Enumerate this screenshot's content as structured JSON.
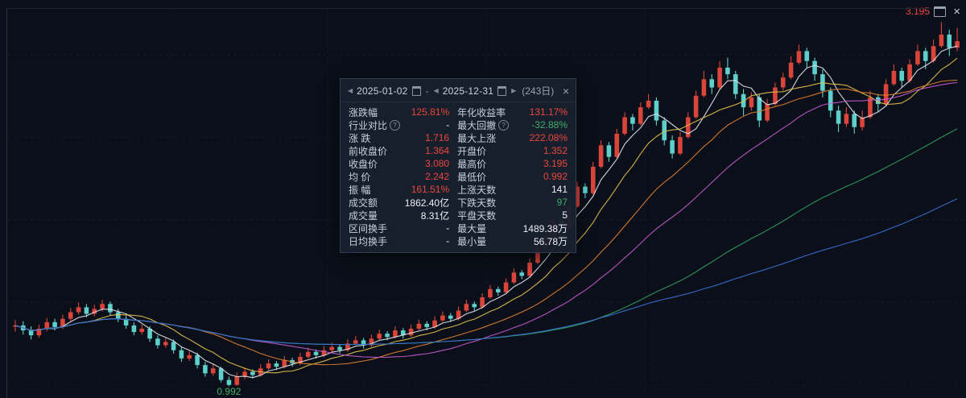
{
  "window": {
    "controls": {
      "expand_icon": "window",
      "close_icon": "×"
    }
  },
  "panel": {
    "header": {
      "prev_start": "◀",
      "start_date": "2025-01-02",
      "sep": "-",
      "prev_end": "◀",
      "end_date": "2025-12-31",
      "next_end": "▶",
      "range_days": "(243日)",
      "close": "×"
    },
    "rows": [
      {
        "left": {
          "label": "涨跌幅",
          "value": "125.81%",
          "tone": "up"
        },
        "right": {
          "label": "年化收益率",
          "value": "131.17%",
          "tone": "up"
        }
      },
      {
        "left": {
          "label": "行业对比",
          "value": "-",
          "tone": "neutral",
          "help": true
        },
        "right": {
          "label": "最大回撤",
          "value": "-32.88%",
          "tone": "down",
          "help": true
        }
      },
      {
        "left": {
          "label": "涨 跌",
          "value": "1.716",
          "tone": "up"
        },
        "right": {
          "label": "最大上涨",
          "value": "222.08%",
          "tone": "up"
        }
      },
      {
        "left": {
          "label": "前收盘价",
          "value": "1.364",
          "tone": "up"
        },
        "right": {
          "label": "开盘价",
          "value": "1.352",
          "tone": "up"
        }
      },
      {
        "left": {
          "label": "收盘价",
          "value": "3.080",
          "tone": "up"
        },
        "right": {
          "label": "最高价",
          "value": "3.195",
          "tone": "up"
        }
      },
      {
        "left": {
          "label": "均 价",
          "value": "2.242",
          "tone": "up"
        },
        "right": {
          "label": "最低价",
          "value": "0.992",
          "tone": "up"
        }
      },
      {
        "left": {
          "label": "振 幅",
          "value": "161.51%",
          "tone": "up"
        },
        "right": {
          "label": "上涨天数",
          "value": "141",
          "tone": "neutral"
        }
      },
      {
        "left": {
          "label": "成交额",
          "value": "1862.40亿",
          "tone": "neutral"
        },
        "right": {
          "label": "下跌天数",
          "value": "97",
          "tone": "down"
        }
      },
      {
        "left": {
          "label": "成交量",
          "value": "8.31亿",
          "tone": "neutral"
        },
        "right": {
          "label": "平盘天数",
          "value": "5",
          "tone": "neutral"
        }
      },
      {
        "left": {
          "label": "区间换手",
          "value": "-",
          "tone": "neutral"
        },
        "right": {
          "label": "最大量",
          "value": "1489.38万",
          "tone": "neutral"
        }
      },
      {
        "left": {
          "label": "日均换手",
          "value": "-",
          "tone": "neutral"
        },
        "right": {
          "label": "最小量",
          "value": "56.78万",
          "tone": "neutral"
        }
      }
    ]
  },
  "chart_data": {
    "type": "candlestick",
    "date_range": [
      "2025-01-02",
      "2025-12-31"
    ],
    "period_days": 243,
    "ylim": [
      0.95,
      3.3
    ],
    "grid": "faint-dashed",
    "stats": {
      "change_pct": "125.81%",
      "annualized_return": "131.17%",
      "max_drawdown": "-32.88%",
      "change": 1.716,
      "max_rise": "222.08%",
      "prev_close": 1.364,
      "open": 1.352,
      "close": 3.08,
      "high": 3.195,
      "avg_price": 2.242,
      "low": 0.992,
      "amplitude": "161.51%",
      "up_days": 141,
      "down_days": 97,
      "flat_days": 5,
      "turnover": "1862.40亿",
      "volume": "8.31亿",
      "max_volume": "1489.38万",
      "min_volume": "56.78万"
    },
    "annotations": {
      "max_label": "3.195",
      "min_label": "0.992"
    },
    "colors": {
      "up": "#d9453a",
      "down": "#5ecfcb",
      "grid": "#ffffff",
      "max_label": "#f1463c",
      "min_label": "#3fae6a"
    },
    "ma_lines": [
      {
        "window": 5,
        "color": "#e3e6ec"
      },
      {
        "window": 10,
        "color": "#e5c14c"
      },
      {
        "window": 20,
        "color": "#e0802f"
      },
      {
        "window": 30,
        "color": "#c45ad0"
      },
      {
        "window": 60,
        "color": "#2f9e5f"
      },
      {
        "window": 90,
        "color": "#3a6fd8"
      }
    ],
    "candles": [
      [
        1.352,
        1.392,
        1.322,
        1.36
      ],
      [
        1.36,
        1.385,
        1.305,
        1.33
      ],
      [
        1.33,
        1.355,
        1.275,
        1.3
      ],
      [
        1.3,
        1.365,
        1.285,
        1.34
      ],
      [
        1.34,
        1.405,
        1.325,
        1.38
      ],
      [
        1.38,
        1.4,
        1.33,
        1.35
      ],
      [
        1.35,
        1.425,
        1.34,
        1.4
      ],
      [
        1.4,
        1.465,
        1.385,
        1.44
      ],
      [
        1.44,
        1.5,
        1.425,
        1.47
      ],
      [
        1.47,
        1.49,
        1.41,
        1.43
      ],
      [
        1.43,
        1.485,
        1.415,
        1.46
      ],
      [
        1.46,
        1.515,
        1.445,
        1.49
      ],
      [
        1.49,
        1.505,
        1.42,
        1.44
      ],
      [
        1.44,
        1.46,
        1.38,
        1.4
      ],
      [
        1.4,
        1.42,
        1.34,
        1.36
      ],
      [
        1.36,
        1.38,
        1.3,
        1.32
      ],
      [
        1.32,
        1.365,
        1.305,
        1.34
      ],
      [
        1.34,
        1.355,
        1.26,
        1.28
      ],
      [
        1.28,
        1.3,
        1.22,
        1.24
      ],
      [
        1.24,
        1.285,
        1.225,
        1.26
      ],
      [
        1.26,
        1.275,
        1.19,
        1.21
      ],
      [
        1.21,
        1.23,
        1.14,
        1.16
      ],
      [
        1.16,
        1.205,
        1.145,
        1.18
      ],
      [
        1.18,
        1.195,
        1.1,
        1.12
      ],
      [
        1.12,
        1.14,
        1.05,
        1.07
      ],
      [
        1.07,
        1.125,
        1.055,
        1.1
      ],
      [
        1.1,
        1.11,
        1.015,
        1.03
      ],
      [
        1.03,
        1.05,
        0.992,
        1.0
      ],
      [
        1.0,
        1.075,
        0.995,
        1.05
      ],
      [
        1.05,
        1.105,
        1.035,
        1.08
      ],
      [
        1.08,
        1.095,
        1.04,
        1.06
      ],
      [
        1.06,
        1.125,
        1.05,
        1.1
      ],
      [
        1.1,
        1.155,
        1.09,
        1.13
      ],
      [
        1.13,
        1.145,
        1.09,
        1.11
      ],
      [
        1.11,
        1.175,
        1.1,
        1.15
      ],
      [
        1.15,
        1.165,
        1.11,
        1.13
      ],
      [
        1.13,
        1.195,
        1.12,
        1.17
      ],
      [
        1.17,
        1.225,
        1.16,
        1.2
      ],
      [
        1.2,
        1.215,
        1.16,
        1.18
      ],
      [
        1.18,
        1.235,
        1.17,
        1.21
      ],
      [
        1.21,
        1.255,
        1.2,
        1.23
      ],
      [
        1.23,
        1.245,
        1.19,
        1.21
      ],
      [
        1.21,
        1.275,
        1.2,
        1.25
      ],
      [
        1.25,
        1.295,
        1.24,
        1.27
      ],
      [
        1.27,
        1.285,
        1.22,
        1.24
      ],
      [
        1.24,
        1.305,
        1.23,
        1.28
      ],
      [
        1.28,
        1.335,
        1.27,
        1.31
      ],
      [
        1.31,
        1.325,
        1.27,
        1.29
      ],
      [
        1.29,
        1.355,
        1.28,
        1.33
      ],
      [
        1.33,
        1.345,
        1.28,
        1.3
      ],
      [
        1.3,
        1.365,
        1.29,
        1.34
      ],
      [
        1.34,
        1.395,
        1.33,
        1.37
      ],
      [
        1.37,
        1.385,
        1.33,
        1.35
      ],
      [
        1.35,
        1.415,
        1.34,
        1.39
      ],
      [
        1.39,
        1.445,
        1.38,
        1.42
      ],
      [
        1.42,
        1.435,
        1.38,
        1.4
      ],
      [
        1.4,
        1.475,
        1.39,
        1.45
      ],
      [
        1.45,
        1.515,
        1.44,
        1.49
      ],
      [
        1.49,
        1.505,
        1.45,
        1.47
      ],
      [
        1.47,
        1.555,
        1.46,
        1.53
      ],
      [
        1.53,
        1.605,
        1.52,
        1.58
      ],
      [
        1.58,
        1.595,
        1.54,
        1.56
      ],
      [
        1.56,
        1.645,
        1.55,
        1.62
      ],
      [
        1.62,
        1.705,
        1.61,
        1.68
      ],
      [
        1.68,
        1.695,
        1.64,
        1.66
      ],
      [
        1.66,
        1.765,
        1.65,
        1.74
      ],
      [
        1.74,
        1.845,
        1.73,
        1.82
      ],
      [
        1.82,
        1.925,
        1.81,
        1.9
      ],
      [
        1.9,
        2.03,
        1.89,
        2.0
      ],
      [
        2.0,
        2.02,
        1.93,
        1.95
      ],
      [
        1.95,
        2.11,
        1.94,
        2.08
      ],
      [
        2.08,
        2.23,
        2.07,
        2.2
      ],
      [
        2.2,
        2.22,
        2.13,
        2.16
      ],
      [
        2.16,
        2.35,
        2.15,
        2.32
      ],
      [
        2.32,
        2.48,
        2.31,
        2.45
      ],
      [
        2.45,
        2.47,
        2.35,
        2.38
      ],
      [
        2.38,
        2.55,
        2.37,
        2.52
      ],
      [
        2.52,
        2.65,
        2.51,
        2.62
      ],
      [
        2.62,
        2.64,
        2.54,
        2.58
      ],
      [
        2.58,
        2.71,
        2.57,
        2.68
      ],
      [
        2.68,
        2.76,
        2.67,
        2.72
      ],
      [
        2.72,
        2.74,
        2.57,
        2.6
      ],
      [
        2.6,
        2.62,
        2.45,
        2.48
      ],
      [
        2.48,
        2.51,
        2.37,
        2.4
      ],
      [
        2.4,
        2.53,
        2.39,
        2.5
      ],
      [
        2.5,
        2.65,
        2.49,
        2.62
      ],
      [
        2.62,
        2.78,
        2.61,
        2.75
      ],
      [
        2.75,
        2.9,
        2.74,
        2.85
      ],
      [
        2.85,
        2.88,
        2.76,
        2.8
      ],
      [
        2.8,
        2.96,
        2.79,
        2.92
      ],
      [
        2.92,
        2.98,
        2.85,
        2.88
      ],
      [
        2.88,
        2.9,
        2.73,
        2.76
      ],
      [
        2.76,
        2.79,
        2.63,
        2.68
      ],
      [
        2.68,
        2.77,
        2.66,
        2.74
      ],
      [
        2.74,
        2.76,
        2.56,
        2.6
      ],
      [
        2.6,
        2.73,
        2.59,
        2.7
      ],
      [
        2.7,
        2.83,
        2.69,
        2.8
      ],
      [
        2.8,
        2.89,
        2.78,
        2.86
      ],
      [
        2.86,
        2.99,
        2.85,
        2.95
      ],
      [
        2.95,
        3.06,
        2.94,
        3.02
      ],
      [
        3.02,
        3.04,
        2.92,
        2.96
      ],
      [
        2.96,
        2.98,
        2.84,
        2.88
      ],
      [
        2.88,
        2.91,
        2.74,
        2.78
      ],
      [
        2.78,
        2.8,
        2.62,
        2.66
      ],
      [
        2.66,
        2.69,
        2.53,
        2.58
      ],
      [
        2.58,
        2.68,
        2.56,
        2.64
      ],
      [
        2.64,
        2.66,
        2.52,
        2.56
      ],
      [
        2.56,
        2.66,
        2.54,
        2.62
      ],
      [
        2.62,
        2.78,
        2.61,
        2.74
      ],
      [
        2.74,
        2.76,
        2.65,
        2.7
      ],
      [
        2.7,
        2.85,
        2.69,
        2.82
      ],
      [
        2.82,
        2.94,
        2.81,
        2.9
      ],
      [
        2.9,
        2.92,
        2.8,
        2.84
      ],
      [
        2.84,
        2.97,
        2.83,
        2.94
      ],
      [
        2.94,
        3.06,
        2.93,
        3.02
      ],
      [
        3.02,
        3.04,
        2.91,
        2.96
      ],
      [
        2.96,
        3.09,
        2.95,
        3.05
      ],
      [
        3.05,
        3.195,
        3.04,
        3.12
      ],
      [
        3.12,
        3.15,
        2.99,
        3.04
      ],
      [
        3.04,
        3.16,
        3.02,
        3.08
      ]
    ]
  }
}
